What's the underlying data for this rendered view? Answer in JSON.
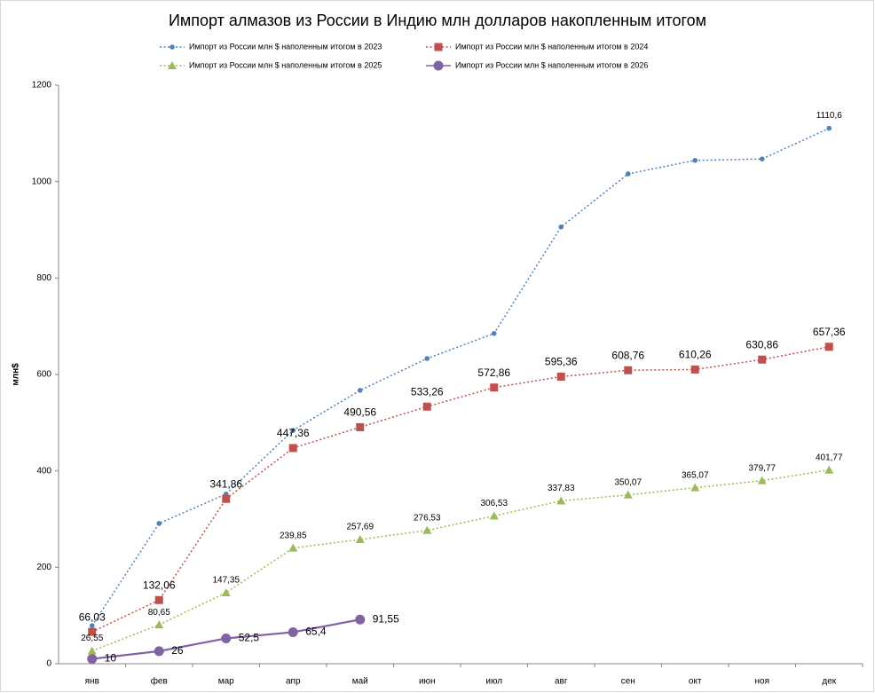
{
  "chart_data": {
    "type": "line",
    "title": "Импорт алмазов из России в Индию млн долларов накопленным итогом",
    "y_label": "млн$",
    "categories": [
      "янв",
      "фев",
      "мар",
      "апр",
      "май",
      "июн",
      "июл",
      "авг",
      "сен",
      "окт",
      "ноя",
      "дек"
    ],
    "ylim": [
      0,
      1200
    ],
    "yticks": [
      0,
      200,
      400,
      600,
      800,
      1000,
      1200
    ],
    "series": [
      {
        "name": "Импорт из России млн $ наполенным итогом в 2023",
        "color": "#4f81bd",
        "marker": "circle",
        "dashed": true,
        "values": [
          79,
          291,
          352,
          484,
          567,
          633,
          685,
          906,
          1016,
          1044,
          1047,
          1110.6
        ],
        "value_labels": [
          null,
          null,
          null,
          null,
          null,
          null,
          null,
          null,
          null,
          null,
          null,
          "1110,6"
        ]
      },
      {
        "name": "Импорт из России млн $ наполенным итогом в 2024",
        "color": "#c0504d",
        "marker": "square",
        "dashed": true,
        "values": [
          66.03,
          132.06,
          341.86,
          447.36,
          490.56,
          533.26,
          572.86,
          595.36,
          608.76,
          610.26,
          630.86,
          657.36
        ],
        "value_labels": [
          "66,03",
          "132,06",
          "341,86",
          "447,36",
          "490,56",
          "533,26",
          "572,86",
          "595,36",
          "608,76",
          "610,26",
          "630,86",
          "657,36"
        ]
      },
      {
        "name": "Импорт из России млн $ наполенным итогом в 2025",
        "color": "#9bbb59",
        "marker": "triangle",
        "dashed": true,
        "values": [
          26.55,
          80.65,
          147.35,
          239.85,
          257.69,
          276.53,
          306.53,
          337.83,
          350.07,
          365.07,
          379.77,
          401.77
        ],
        "value_labels": [
          "26,55",
          "80,65",
          "147,35",
          "239,85",
          "257,69",
          "276,53",
          "306,53",
          "337,83",
          "350,07",
          "365,07",
          "379,77",
          "401,77"
        ]
      },
      {
        "name": "Импорт из России млн $ наполенным итогом в 2026",
        "color": "#8064a2",
        "marker": "bigcircle",
        "dashed": false,
        "values": [
          10,
          26,
          52.5,
          65.4,
          91.55,
          null,
          null,
          null,
          null,
          null,
          null,
          null
        ],
        "value_labels": [
          "10",
          "26",
          "52,5",
          "65,4",
          "91,55",
          null,
          null,
          null,
          null,
          null,
          null,
          null
        ]
      }
    ]
  }
}
